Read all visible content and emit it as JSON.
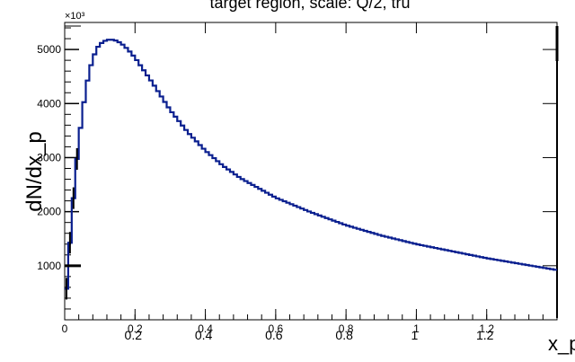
{
  "chart_data": {
    "type": "line",
    "title": "target region, scale: Q/2, tru",
    "xlabel": "x_p",
    "ylabel": "dN/dx_p",
    "y_multiplier_label": "×10³",
    "xlim": [
      0,
      1.4
    ],
    "ylim": [
      0,
      5500
    ],
    "x_ticks": [
      {
        "value": 0,
        "label": "0"
      },
      {
        "value": 0.2,
        "label": "0.2"
      },
      {
        "value": 0.4,
        "label": "0.4"
      },
      {
        "value": 0.6,
        "label": "0.6"
      },
      {
        "value": 0.8,
        "label": "0.8"
      },
      {
        "value": 1.0,
        "label": "1"
      },
      {
        "value": 1.2,
        "label": "1.2"
      }
    ],
    "x_ticks_shifted": [
      "0.2",
      "0.4",
      "0.6",
      "0.8",
      "1",
      "1.2"
    ],
    "y_ticks": [
      {
        "value": 1000,
        "label": "1000"
      },
      {
        "value": 2000,
        "label": "2000"
      },
      {
        "value": 3000,
        "label": "3000"
      },
      {
        "value": 4000,
        "label": "4000"
      },
      {
        "value": 5000,
        "label": "5000"
      }
    ],
    "grid": false,
    "color": "#0a1f8f",
    "series": [
      {
        "x": [
          0.0,
          0.01,
          0.02,
          0.03,
          0.04,
          0.05,
          0.06,
          0.07,
          0.08,
          0.09,
          0.1,
          0.12,
          0.14,
          0.16,
          0.18,
          0.2,
          0.25,
          0.3,
          0.35,
          0.4,
          0.45,
          0.5,
          0.6,
          0.7,
          0.8,
          0.9,
          1.0,
          1.1,
          1.2,
          1.3,
          1.4
        ],
        "y": [
          150,
          1000,
          1850,
          2650,
          3300,
          3800,
          4250,
          4600,
          4820,
          5000,
          5100,
          5180,
          5180,
          5120,
          5000,
          4850,
          4380,
          3880,
          3470,
          3130,
          2850,
          2620,
          2260,
          1990,
          1750,
          1560,
          1400,
          1270,
          1140,
          1030,
          920
        ]
      }
    ]
  }
}
